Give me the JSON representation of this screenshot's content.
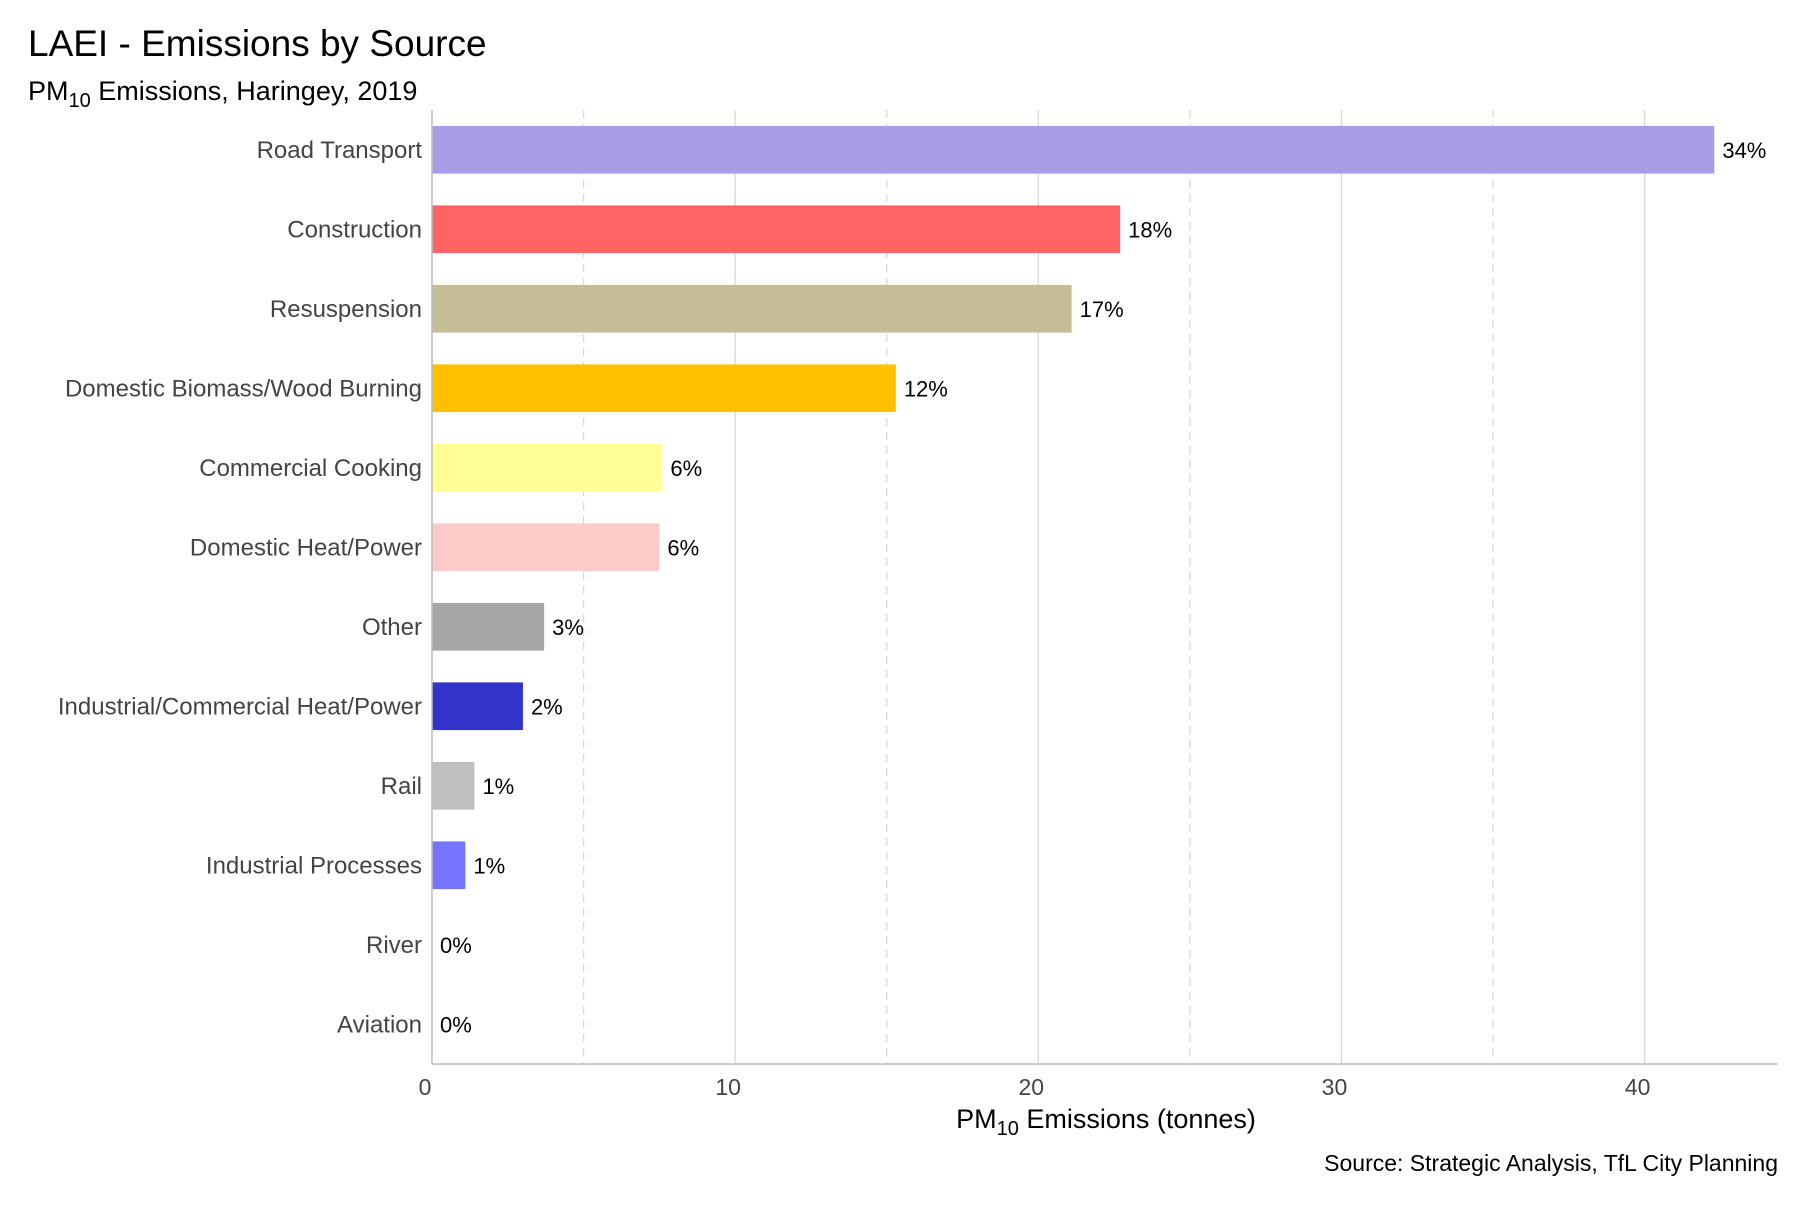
{
  "chart_data": {
    "type": "bar",
    "orientation": "horizontal",
    "title": "LAEI - Emissions by Source",
    "subtitle": {
      "prefix": "PM",
      "sub": "10",
      "suffix": " Emissions, Haringey, 2019"
    },
    "xlabel": {
      "prefix": "PM",
      "sub": "10",
      "suffix": " Emissions (tonnes)"
    },
    "caption": "Source: Strategic Analysis, TfL City Planning",
    "xlim": [
      0,
      44.4
    ],
    "xticks": [
      0,
      10,
      20,
      30,
      40
    ],
    "grid": "vertical",
    "categories": [
      "Road Transport",
      "Construction",
      "Resuspension",
      "Domestic Biomass/Wood Burning",
      "Commercial Cooking",
      "Domestic Heat/Power",
      "Other",
      "Industrial/Commercial Heat/Power",
      "Rail",
      "Industrial Processes",
      "River",
      "Aviation"
    ],
    "values": [
      42.3,
      22.7,
      21.1,
      15.3,
      7.6,
      7.5,
      3.7,
      3.0,
      1.4,
      1.1,
      0.0,
      0.0
    ],
    "labels": [
      "34%",
      "18%",
      "17%",
      "12%",
      "6%",
      "6%",
      "3%",
      "2%",
      "1%",
      "1%",
      "0%",
      "0%"
    ],
    "colors": [
      "#a89ee8",
      "#ff6464",
      "#c4bd96",
      "#ffc000",
      "#ffff96",
      "#ffcaca",
      "#a6a6a6",
      "#3333cc",
      "#bfbfbf",
      "#7474ff",
      "#b7b7b7",
      "#d9d9d9"
    ]
  }
}
